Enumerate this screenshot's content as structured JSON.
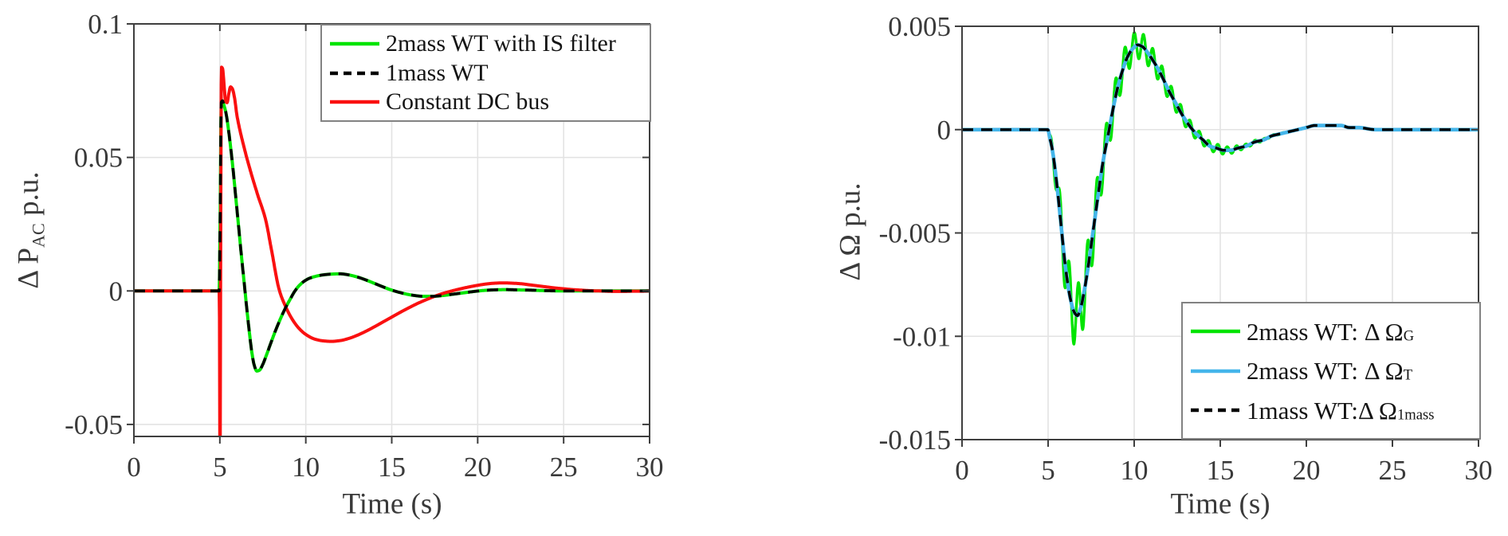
{
  "figure": {
    "background": "#ffffff",
    "axis_color": "#3f3f3f",
    "grid_color": "#e3e3e3",
    "tick_label_color": "#3a3a3a"
  },
  "chart_data": [
    {
      "type": "line",
      "title": "",
      "xlabel": "Time (s)",
      "ylabel": "Δ P_AC p.u.",
      "ylabel_parts": {
        "pre": "Δ P",
        "sub": "AC",
        "post": " p.u."
      },
      "xlim": [
        0,
        30
      ],
      "ylim": [
        -0.0545,
        0.1
      ],
      "x_ticks": [
        0,
        5,
        10,
        15,
        20,
        25,
        30
      ],
      "y_ticks": [
        {
          "v": 0.1,
          "label": "0.1"
        },
        {
          "v": 0.05,
          "label": "0.05"
        },
        {
          "v": 0,
          "label": "0"
        },
        {
          "v": -0.05,
          "label": "-0.05"
        }
      ],
      "grid": true,
      "legend": {
        "position": "top-right",
        "entries": [
          {
            "label": "2mass WT with IS filter",
            "sub": "",
            "color": "#00e400",
            "dash": false
          },
          {
            "label": "1mass WT",
            "sub": "",
            "color": "#000000",
            "dash": true
          },
          {
            "label": "Constant DC bus",
            "sub": "",
            "color": "#fa1010",
            "dash": false
          }
        ]
      },
      "series": [
        {
          "name": "2mass WT with IS filter",
          "color": "#00e400",
          "style": "solid",
          "width": 4,
          "points": [
            [
              0,
              0
            ],
            [
              1,
              0
            ],
            [
              2,
              0
            ],
            [
              3,
              0
            ],
            [
              4,
              0
            ],
            [
              4.96,
              0
            ],
            [
              5.02,
              0.03
            ],
            [
              5.08,
              0.0705
            ],
            [
              5.15,
              0.0712
            ],
            [
              5.24,
              0.0695
            ],
            [
              5.35,
              0.0668
            ],
            [
              5.5,
              0.0605
            ],
            [
              5.65,
              0.0525
            ],
            [
              5.8,
              0.0435
            ],
            [
              5.95,
              0.0335
            ],
            [
              6.1,
              0.0235
            ],
            [
              6.25,
              0.0135
            ],
            [
              6.4,
              0.004
            ],
            [
              6.55,
              -0.0055
            ],
            [
              6.7,
              -0.0145
            ],
            [
              6.85,
              -0.0225
            ],
            [
              7,
              -0.0278
            ],
            [
              7.15,
              -0.03
            ],
            [
              7.3,
              -0.0297
            ],
            [
              7.5,
              -0.0275
            ],
            [
              7.7,
              -0.0242
            ],
            [
              7.95,
              -0.0198
            ],
            [
              8.2,
              -0.0155
            ],
            [
              8.5,
              -0.0108
            ],
            [
              8.8,
              -0.0066
            ],
            [
              9.1,
              -0.003
            ],
            [
              9.35,
              -0.0002
            ],
            [
              9.6,
              0.0019
            ],
            [
              9.9,
              0.0036
            ],
            [
              10.2,
              0.0047
            ],
            [
              10.6,
              0.0055
            ],
            [
              11,
              0.006
            ],
            [
              11.5,
              0.0063
            ],
            [
              12,
              0.0064
            ],
            [
              12.5,
              0.006
            ],
            [
              13,
              0.0052
            ],
            [
              13.5,
              0.0041
            ],
            [
              14,
              0.0028
            ],
            [
              14.5,
              0.0015
            ],
            [
              15,
              0.0003
            ],
            [
              15.6,
              -0.0008
            ],
            [
              16.2,
              -0.0016
            ],
            [
              16.8,
              -0.002
            ],
            [
              17.4,
              -0.002
            ],
            [
              18,
              -0.0017
            ],
            [
              18.6,
              -0.0012
            ],
            [
              19.2,
              -0.0007
            ],
            [
              19.8,
              -0.0002
            ],
            [
              20.4,
              0.0002
            ],
            [
              21,
              0.0004
            ],
            [
              21.6,
              0.0005
            ],
            [
              22.2,
              0.0004
            ],
            [
              23,
              0.0003
            ],
            [
              24,
              0.0001
            ],
            [
              25,
              0
            ],
            [
              26,
              0
            ],
            [
              27,
              0
            ],
            [
              28,
              0
            ],
            [
              29,
              0
            ],
            [
              30,
              0
            ]
          ]
        },
        {
          "name": "Constant DC bus",
          "color": "#fa1010",
          "style": "solid",
          "width": 4,
          "points": [
            [
              0,
              0
            ],
            [
              1,
              0
            ],
            [
              2,
              0
            ],
            [
              3,
              0
            ],
            [
              4,
              0
            ],
            [
              4.97,
              0
            ],
            [
              5.01,
              -0.065
            ],
            [
              5.05,
              0.02
            ],
            [
              5.09,
              0.0838
            ],
            [
              5.16,
              0.0832
            ],
            [
              5.25,
              0.0768
            ],
            [
              5.33,
              0.0712
            ],
            [
              5.42,
              0.0705
            ],
            [
              5.52,
              0.0738
            ],
            [
              5.62,
              0.0764
            ],
            [
              5.72,
              0.0758
            ],
            [
              5.85,
              0.0725
            ],
            [
              6,
              0.0655
            ],
            [
              6.4,
              0.054
            ],
            [
              6.8,
              0.0445
            ],
            [
              7.2,
              0.036
            ],
            [
              7.65,
              0.027
            ],
            [
              8,
              0.0155
            ],
            [
              8.45,
              0.0005
            ],
            [
              8.8,
              -0.0055
            ],
            [
              9.2,
              -0.0105
            ],
            [
              9.6,
              -0.014
            ],
            [
              10,
              -0.0163
            ],
            [
              10.5,
              -0.018
            ],
            [
              11,
              -0.0187
            ],
            [
              11.5,
              -0.0189
            ],
            [
              12,
              -0.0186
            ],
            [
              12.5,
              -0.0178
            ],
            [
              13,
              -0.0166
            ],
            [
              13.5,
              -0.0151
            ],
            [
              14,
              -0.0134
            ],
            [
              14.5,
              -0.0116
            ],
            [
              15,
              -0.0098
            ],
            [
              15.5,
              -0.008
            ],
            [
              16,
              -0.0063
            ],
            [
              16.5,
              -0.0047
            ],
            [
              17,
              -0.0033
            ],
            [
              17.5,
              -0.002
            ],
            [
              18,
              -0.0009
            ],
            [
              18.5,
              0
            ],
            [
              19,
              0.0008
            ],
            [
              19.5,
              0.0015
            ],
            [
              20,
              0.0021
            ],
            [
              20.5,
              0.0026
            ],
            [
              21,
              0.0029
            ],
            [
              21.5,
              0.003
            ],
            [
              22,
              0.0029
            ],
            [
              22.5,
              0.0027
            ],
            [
              23,
              0.0023
            ],
            [
              23.5,
              0.0019
            ],
            [
              24,
              0.0015
            ],
            [
              24.5,
              0.0011
            ],
            [
              25,
              0.0008
            ],
            [
              25.5,
              0.0005
            ],
            [
              26,
              0.0003
            ],
            [
              26.5,
              0.0001
            ],
            [
              27,
              0
            ],
            [
              27.5,
              -0.0001
            ],
            [
              28,
              -0.0002
            ],
            [
              28.5,
              -0.0002
            ],
            [
              29,
              -0.0001
            ],
            [
              29.5,
              -0.0001
            ],
            [
              30,
              0
            ]
          ]
        },
        {
          "name": "1mass WT",
          "color": "#000000",
          "style": "dashed",
          "width": 3.6,
          "points_ref": 0
        }
      ]
    },
    {
      "type": "line",
      "title": "",
      "xlabel": "Time (s)",
      "ylabel": "Δ Ω p.u.",
      "ylabel_parts": {
        "pre": "Δ Ω",
        "sub": "",
        "post": " p.u."
      },
      "xlim": [
        0,
        30
      ],
      "ylim": [
        -0.015,
        0.005
      ],
      "x_ticks": [
        0,
        5,
        10,
        15,
        20,
        25,
        30
      ],
      "y_ticks": [
        {
          "v": 0.005,
          "label": "0.005"
        },
        {
          "v": 0,
          "label": "0"
        },
        {
          "v": -0.005,
          "label": "-0.005"
        },
        {
          "v": -0.01,
          "label": "-0.01"
        },
        {
          "v": -0.015,
          "label": "-0.015"
        }
      ],
      "grid": true,
      "legend": {
        "position": "bottom-right",
        "entries": [
          {
            "label": "2mass WT: Δ Ω",
            "sub": "G",
            "color": "#00e400",
            "dash": false
          },
          {
            "label": "2mass WT: Δ Ω",
            "sub": "T",
            "color": "#44b5ea",
            "dash": false
          },
          {
            "label": "1mass WT:Δ Ω",
            "sub": "1mass",
            "color": "#000000",
            "dash": true
          }
        ]
      },
      "series": [
        {
          "name": "2mass WT: Δ Ω_G",
          "color": "#00e400",
          "style": "solid",
          "width": 3.4,
          "points_ref": 1,
          "oscillation": {
            "freq_hz": 1.85,
            "start": 5,
            "envelope": [
              [
                5,
                0
              ],
              [
                5.3,
                0.0005
              ],
              [
                5.7,
                0.001
              ],
              [
                6.1,
                0.0014
              ],
              [
                6.5,
                0.0016
              ],
              [
                7,
                0.0015
              ],
              [
                7.5,
                0.0013
              ],
              [
                8,
                0.0011
              ],
              [
                8.6,
                0.0009
              ],
              [
                9.2,
                0.0008
              ],
              [
                10,
                0.0007
              ],
              [
                10.8,
                0.0006
              ],
              [
                11.6,
                0.0005
              ],
              [
                12.4,
                0.0004
              ],
              [
                13.2,
                0.0003
              ],
              [
                14,
                0.00025
              ],
              [
                15,
                0.0002
              ],
              [
                16,
                0.00013
              ],
              [
                17,
                8e-05
              ],
              [
                18,
                4e-05
              ],
              [
                19,
                2e-05
              ],
              [
                20,
                0
              ],
              [
                30,
                0
              ]
            ]
          }
        },
        {
          "name": "2mass WT: Δ Ω_T",
          "color": "#44b5ea",
          "style": "solid",
          "width": 4.6,
          "points": [
            [
              0,
              0
            ],
            [
              1,
              0
            ],
            [
              2,
              0
            ],
            [
              3,
              0
            ],
            [
              4,
              0
            ],
            [
              4.98,
              0
            ],
            [
              5.1,
              -0.0004
            ],
            [
              5.25,
              -0.001
            ],
            [
              5.5,
              -0.0026
            ],
            [
              5.75,
              -0.0046
            ],
            [
              6,
              -0.0066
            ],
            [
              6.25,
              -0.008
            ],
            [
              6.5,
              -0.0088
            ],
            [
              6.7,
              -0.009
            ],
            [
              6.9,
              -0.0086
            ],
            [
              7.1,
              -0.0078
            ],
            [
              7.35,
              -0.0065
            ],
            [
              7.6,
              -0.005
            ],
            [
              7.9,
              -0.0032
            ],
            [
              8.2,
              -0.0015
            ],
            [
              8.5,
              -0.0002
            ],
            [
              8.75,
              0.0009
            ],
            [
              9,
              0.0019
            ],
            [
              9.3,
              0.0028
            ],
            [
              9.6,
              0.0035
            ],
            [
              9.9,
              0.0039
            ],
            [
              10.2,
              0.0041
            ],
            [
              10.5,
              0.004
            ],
            [
              10.8,
              0.0037
            ],
            [
              11.2,
              0.0032
            ],
            [
              11.6,
              0.0026
            ],
            [
              12,
              0.0019
            ],
            [
              12.4,
              0.0013
            ],
            [
              12.8,
              0.0007
            ],
            [
              13.2,
              0.0002
            ],
            [
              13.6,
              -0.0002
            ],
            [
              14,
              -0.0005
            ],
            [
              14.4,
              -0.0008
            ],
            [
              14.8,
              -0.0009
            ],
            [
              15.2,
              -0.001
            ],
            [
              15.6,
              -0.001
            ],
            [
              16,
              -0.0009
            ],
            [
              16.5,
              -0.0008
            ],
            [
              17,
              -0.0006
            ],
            [
              17.5,
              -0.0005
            ],
            [
              18,
              -0.0003
            ],
            [
              18.5,
              -0.0002
            ],
            [
              19,
              -0.0001
            ],
            [
              19.5,
              0
            ],
            [
              20,
              0.0001
            ],
            [
              20.5,
              0.0002
            ],
            [
              21,
              0.0002
            ],
            [
              21.5,
              0.0002
            ],
            [
              22,
              0.0002
            ],
            [
              22.5,
              0.0001
            ],
            [
              23,
              0.0001
            ],
            [
              24,
              0
            ],
            [
              25,
              0
            ],
            [
              26,
              0
            ],
            [
              27,
              0
            ],
            [
              28,
              0
            ],
            [
              29,
              0
            ],
            [
              30,
              0
            ]
          ]
        },
        {
          "name": "1mass WT: Δ Ω_1mass",
          "color": "#000000",
          "style": "dashed",
          "width": 3.4,
          "points_ref": 1
        }
      ]
    }
  ]
}
